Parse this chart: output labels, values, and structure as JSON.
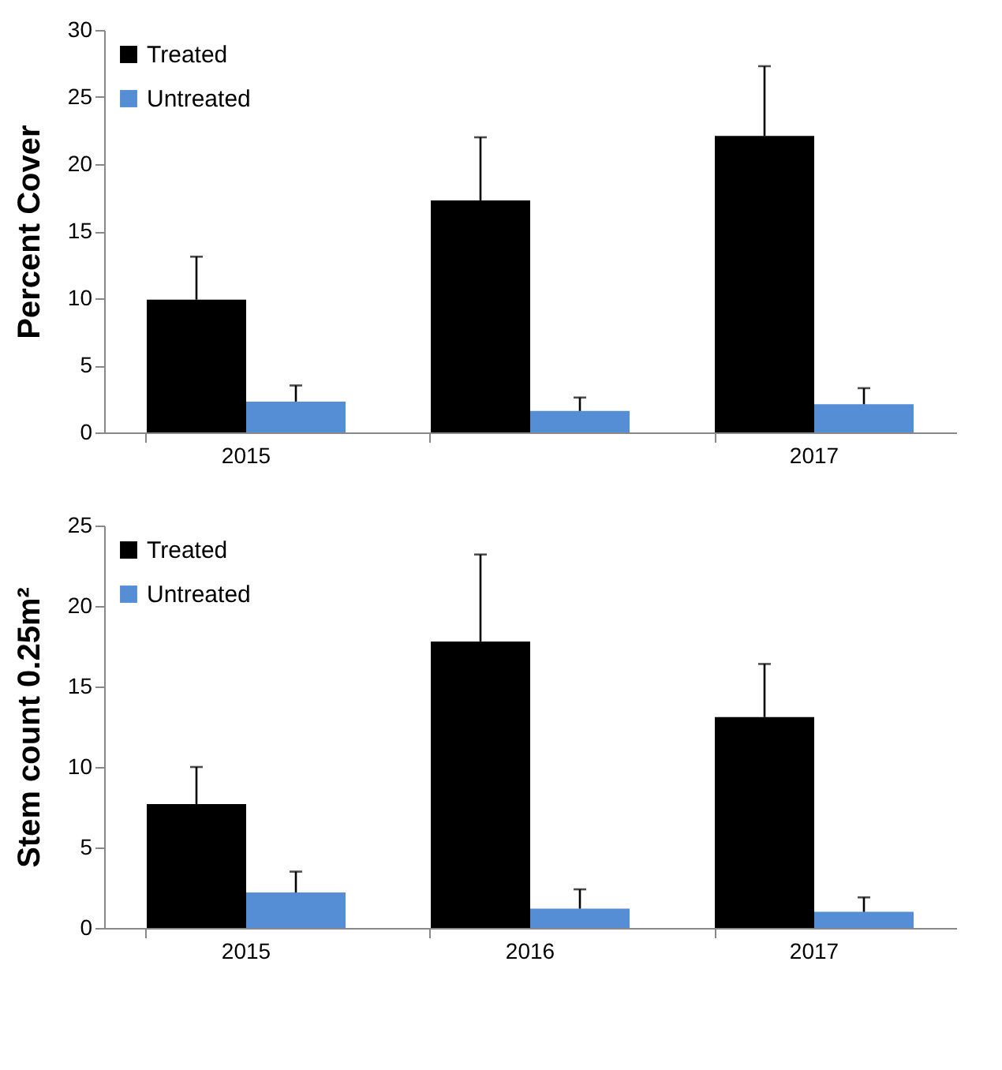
{
  "chart_data": [
    {
      "type": "bar",
      "ylabel": "Percent Cover",
      "categories": [
        "2015",
        null,
        "2017"
      ],
      "ylim": [
        0,
        30
      ],
      "yticks": [
        0,
        5,
        10,
        15,
        20,
        25,
        30
      ],
      "grid": false,
      "legend": "top left",
      "series": [
        {
          "name": "Treated",
          "color": "#000000",
          "values": [
            9.9,
            17.3,
            22.1
          ],
          "errors": [
            [
              9.9,
              13.1
            ],
            [
              17.3,
              22.0
            ],
            [
              22.1,
              27.3
            ]
          ]
        },
        {
          "name": "Untreated",
          "color": "#558ed5",
          "values": [
            2.3,
            1.6,
            2.1
          ],
          "errors": [
            [
              2.3,
              3.5
            ],
            [
              1.6,
              2.6
            ],
            [
              2.1,
              3.3
            ]
          ]
        }
      ]
    },
    {
      "type": "bar",
      "ylabel": "Stem count 0.25m²",
      "categories": [
        "2015",
        "2016",
        "2017"
      ],
      "ylim": [
        0,
        25
      ],
      "yticks": [
        0,
        5,
        10,
        15,
        20,
        25
      ],
      "grid": false,
      "legend": "top left",
      "series": [
        {
          "name": "Treated",
          "color": "#000000",
          "values": [
            7.7,
            17.8,
            13.1
          ],
          "errors": [
            [
              7.7,
              10.0
            ],
            [
              17.8,
              23.2
            ],
            [
              13.1,
              16.4
            ]
          ]
        },
        {
          "name": "Untreated",
          "color": "#558ed5",
          "values": [
            2.2,
            1.2,
            1.0
          ],
          "errors": [
            [
              2.2,
              3.5
            ],
            [
              1.2,
              2.4
            ],
            [
              1.0,
              1.9
            ]
          ]
        }
      ]
    }
  ]
}
